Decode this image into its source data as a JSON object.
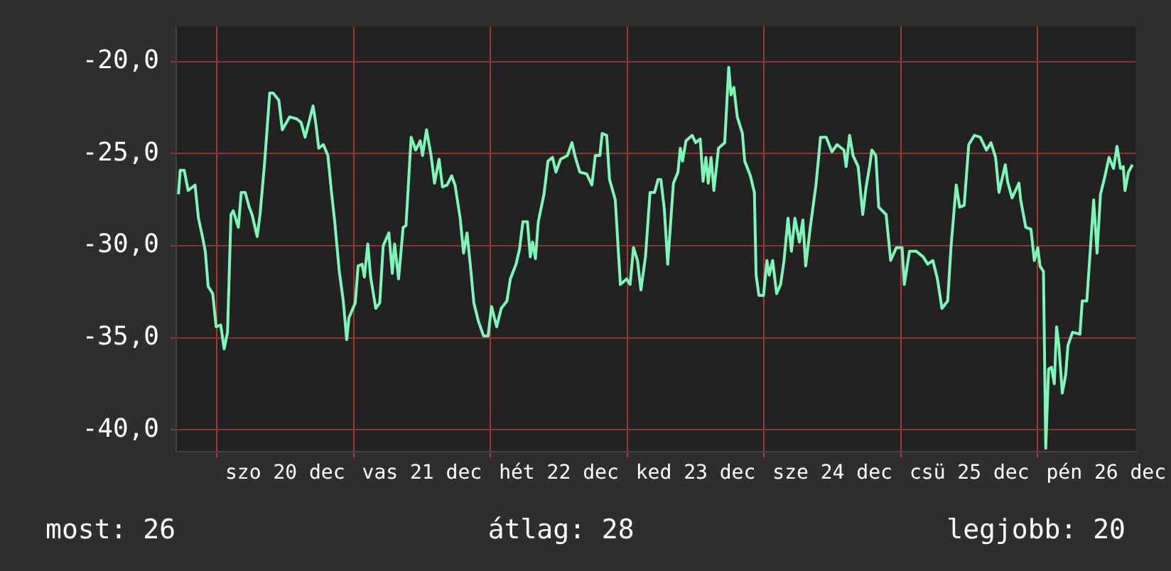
{
  "chart_data": {
    "type": "line",
    "xlim": [
      "--12-19T16:54",
      "--12-26T17:12"
    ],
    "ylim": [
      -41.2,
      -18.1
    ],
    "xticks": [
      {
        "value": "--12-20T00:00",
        "label": null
      },
      {
        "value": "--12-20T12:00",
        "label": "szo 20 dec"
      },
      {
        "value": "--12-21T00:00",
        "label": null
      },
      {
        "value": "--12-21T12:00",
        "label": "vas 21 dec"
      },
      {
        "value": "--12-22T00:00",
        "label": null
      },
      {
        "value": "--12-22T12:00",
        "label": "hét 22 dec"
      },
      {
        "value": "--12-23T00:00",
        "label": null
      },
      {
        "value": "--12-23T12:00",
        "label": "ked 23 dec"
      },
      {
        "value": "--12-24T00:00",
        "label": null
      },
      {
        "value": "--12-24T12:00",
        "label": "sze 24 dec"
      },
      {
        "value": "--12-25T00:00",
        "label": null
      },
      {
        "value": "--12-25T12:00",
        "label": "csü 25 dec"
      },
      {
        "value": "--12-26T00:00",
        "label": null
      },
      {
        "value": "--12-26T12:00",
        "label": "pén 26 dec"
      }
    ],
    "yticks": [
      {
        "value": -20,
        "label": "-20,0"
      },
      {
        "value": -25,
        "label": "-25,0"
      },
      {
        "value": -30,
        "label": "-30,0"
      },
      {
        "value": -35,
        "label": "-35,0"
      },
      {
        "value": -40,
        "label": "-40,0"
      }
    ],
    "grid": true,
    "legend": false,
    "marker": "none",
    "line_style": "solid",
    "annotations": [
      "most: 26",
      "átlag: 28",
      "legjobb: 20"
    ],
    "series": [
      {
        "color": "#7ff5b8",
        "x": [
          "--12-19T17:18",
          "--12-19T17:36",
          "--12-19T18:18",
          "--12-19T19:00",
          "--12-19T20:12",
          "--12-19T20:48",
          "--12-19T21:30",
          "--12-19T22:00",
          "--12-19T22:30",
          "--12-19T23:18",
          "--12-19T23:54",
          "--12-20T00:42",
          "--12-20T01:18",
          "--12-20T01:54",
          "--12-20T02:30",
          "--12-20T02:54",
          "--12-20T03:48",
          "--12-20T04:18",
          "--12-20T05:00",
          "--12-20T05:42",
          "--12-20T06:12",
          "--12-20T07:06",
          "--12-20T07:36",
          "--12-20T08:24",
          "--12-20T09:18",
          "--12-20T09:54",
          "--12-20T10:54",
          "--12-20T11:30",
          "--12-20T12:48",
          "--12-20T14:00",
          "--12-20T14:48",
          "--12-20T15:30",
          "--12-20T16:00",
          "--12-20T16:54",
          "--12-20T17:24",
          "--12-20T17:54",
          "--12-20T18:42",
          "--12-20T19:30",
          "--12-20T20:06",
          "--12-20T20:42",
          "--12-20T21:30",
          "--12-20T22:12",
          "--12-20T22:48",
          "--12-20T23:12",
          "--12-21T00:18",
          "--12-21T00:48",
          "--12-21T01:30",
          "--12-21T01:54",
          "--12-21T02:30",
          "--12-21T03:00",
          "--12-21T03:54",
          "--12-21T04:36",
          "--12-21T05:12",
          "--12-21T06:12",
          "--12-21T06:48",
          "--12-21T07:12",
          "--12-21T07:54",
          "--12-21T08:42",
          "--12-21T09:12",
          "--12-21T10:06",
          "--12-21T10:54",
          "--12-21T11:42",
          "--12-21T12:06",
          "--12-21T12:48",
          "--12-21T13:36",
          "--12-21T14:12",
          "--12-21T15:00",
          "--12-21T15:36",
          "--12-21T16:24",
          "--12-21T17:12",
          "--12-21T17:48",
          "--12-21T18:42",
          "--12-21T19:18",
          "--12-21T19:54",
          "--12-21T20:30",
          "--12-21T21:06",
          "--12-21T21:54",
          "--12-21T22:48",
          "--12-21T23:36",
          "--12-22T00:12",
          "--12-22T01:06",
          "--12-22T01:54",
          "--12-22T02:54",
          "--12-22T03:30",
          "--12-22T04:30",
          "--12-22T05:06",
          "--12-22T05:42",
          "--12-22T06:30",
          "--12-22T07:00",
          "--12-22T07:24",
          "--12-22T07:54",
          "--12-22T08:24",
          "--12-22T09:24",
          "--12-22T10:06",
          "--12-22T10:54",
          "--12-22T11:30",
          "--12-22T12:18",
          "--12-22T13:30",
          "--12-22T14:18",
          "--12-22T14:54",
          "--12-22T15:42",
          "--12-22T16:54",
          "--12-22T17:48",
          "--12-22T18:24",
          "--12-22T19:12",
          "--12-22T19:36",
          "--12-22T20:24",
          "--12-22T20:54",
          "--12-22T21:54",
          "--12-22T22:48",
          "--12-22T23:54",
          "--12-23T00:30",
          "--12-23T01:06",
          "--12-23T01:48",
          "--12-23T02:24",
          "--12-23T03:12",
          "--12-23T04:00",
          "--12-23T04:48",
          "--12-23T05:24",
          "--12-23T05:54",
          "--12-23T06:30",
          "--12-23T07:06",
          "--12-23T08:06",
          "--12-23T08:54",
          "--12-23T09:18",
          "--12-23T09:42",
          "--12-23T10:18",
          "--12-23T11:24",
          "--12-23T12:00",
          "--12-23T12:48",
          "--12-23T13:18",
          "--12-23T13:48",
          "--12-23T14:12",
          "--12-23T14:42",
          "--12-23T15:12",
          "--12-23T16:00",
          "--12-23T17:06",
          "--12-23T17:48",
          "--12-23T18:12",
          "--12-23T18:42",
          "--12-23T19:18",
          "--12-23T20:12",
          "--12-23T20:36",
          "--12-23T21:36",
          "--12-23T22:18",
          "--12-23T22:36",
          "--12-23T23:06",
          "--12-23T23:54",
          "--12-24T00:30",
          "--12-24T00:54",
          "--12-24T01:30",
          "--12-24T02:12",
          "--12-24T02:54",
          "--12-24T03:30",
          "--12-24T04:12",
          "--12-24T04:48",
          "--12-24T05:24",
          "--12-24T06:12",
          "--12-24T06:48",
          "--12-24T07:18",
          "--12-24T08:06",
          "--12-24T09:06",
          "--12-24T09:54",
          "--12-24T10:54",
          "--12-24T11:54",
          "--12-24T12:48",
          "--12-24T14:00",
          "--12-24T14:24",
          "--12-24T15:00",
          "--12-24T15:36",
          "--12-24T16:30",
          "--12-24T17:18",
          "--12-24T17:54",
          "--12-24T18:30",
          "--12-24T18:54",
          "--12-24T19:36",
          "--12-24T20:06",
          "--12-24T21:24",
          "--12-24T22:12",
          "--12-24T23:12",
          "--12-25T00:12",
          "--12-25T00:36",
          "--12-25T01:30",
          "--12-25T02:42",
          "--12-25T03:54",
          "--12-25T04:42",
          "--12-25T05:36",
          "--12-25T06:24",
          "--12-25T07:12",
          "--12-25T08:12",
          "--12-25T08:48",
          "--12-25T09:42",
          "--12-25T10:18",
          "--12-25T11:06",
          "--12-25T11:54",
          "--12-25T12:54",
          "--12-25T13:54",
          "--12-25T15:00",
          "--12-25T15:48",
          "--12-25T16:36",
          "--12-25T17:12",
          "--12-25T18:18",
          "--12-25T18:42",
          "--12-25T19:30",
          "--12-25T20:42",
          "--12-25T21:00",
          "--12-25T21:54",
          "--12-25T22:48",
          "--12-25T23:24",
          "--12-26T00:00",
          "--12-26T00:24",
          "--12-26T01:00",
          "--12-26T01:24",
          "--12-26T01:54",
          "--12-26T02:24",
          "--12-26T02:54",
          "--12-26T03:18",
          "--12-26T03:42",
          "--12-26T04:18",
          "--12-26T04:54",
          "--12-26T05:18",
          "--12-26T06:06",
          "--12-26T07:24",
          "--12-26T07:48",
          "--12-26T08:36",
          "--12-26T09:12",
          "--12-26T09:48",
          "--12-26T10:24",
          "--12-26T11:00",
          "--12-26T11:48",
          "--12-26T12:30",
          "--12-26T13:18",
          "--12-26T13:54",
          "--12-26T14:30",
          "--12-26T15:00",
          "--12-26T15:18",
          "--12-26T15:54",
          "--12-26T16:36"
        ],
        "values": [
          -27.2,
          -25.9,
          -25.9,
          -27.0,
          -26.7,
          -28.5,
          -29.5,
          -30.3,
          -32.2,
          -32.6,
          -34.4,
          -34.3,
          -35.6,
          -34.7,
          -28.3,
          -28.1,
          -29.0,
          -27.1,
          -27.1,
          -27.9,
          -28.3,
          -29.5,
          -28.3,
          -25.5,
          -21.7,
          -21.7,
          -22.1,
          -23.7,
          -23.0,
          -23.1,
          -23.3,
          -24.1,
          -23.5,
          -22.4,
          -23.4,
          -24.7,
          -24.5,
          -25.1,
          -27.0,
          -28.7,
          -31.4,
          -33.0,
          -35.1,
          -33.9,
          -33.1,
          -31.1,
          -31.0,
          -31.7,
          -29.9,
          -31.7,
          -33.4,
          -33.1,
          -30.0,
          -29.3,
          -31.5,
          -29.9,
          -31.8,
          -29.0,
          -28.9,
          -24.1,
          -24.8,
          -24.3,
          -25.1,
          -23.7,
          -25.1,
          -26.6,
          -25.3,
          -26.8,
          -26.7,
          -26.2,
          -26.7,
          -28.5,
          -30.4,
          -29.3,
          -31.1,
          -33.1,
          -34.1,
          -34.9,
          -34.9,
          -33.3,
          -34.4,
          -33.4,
          -33.0,
          -31.8,
          -31.0,
          -30.2,
          -28.7,
          -28.7,
          -30.6,
          -29.8,
          -30.7,
          -28.7,
          -27.2,
          -25.4,
          -25.2,
          -26.0,
          -25.3,
          -25.1,
          -24.4,
          -25.2,
          -26.0,
          -26.1,
          -26.7,
          -25.1,
          -25.1,
          -23.9,
          -24.0,
          -26.4,
          -27.5,
          -32.1,
          -31.8,
          -32.1,
          -30.1,
          -30.8,
          -32.4,
          -30.6,
          -27.1,
          -27.1,
          -26.4,
          -26.4,
          -28.0,
          -31.0,
          -26.6,
          -26.0,
          -24.7,
          -25.4,
          -24.3,
          -24.0,
          -24.4,
          -24.2,
          -26.5,
          -25.2,
          -26.6,
          -25.2,
          -27.0,
          -24.7,
          -24.4,
          -20.3,
          -21.8,
          -21.4,
          -23.0,
          -23.9,
          -25.4,
          -26.2,
          -27.1,
          -31.6,
          -32.7,
          -32.7,
          -30.8,
          -31.6,
          -30.8,
          -32.6,
          -32.1,
          -30.8,
          -28.5,
          -30.3,
          -28.5,
          -29.8,
          -28.6,
          -31.1,
          -29.0,
          -26.7,
          -24.1,
          -24.1,
          -24.9,
          -24.5,
          -24.8,
          -25.7,
          -24.0,
          -25.1,
          -25.7,
          -28.3,
          -26.8,
          -25.7,
          -24.8,
          -25.1,
          -27.9,
          -28.3,
          -30.8,
          -30.1,
          -30.1,
          -32.1,
          -30.3,
          -30.3,
          -30.6,
          -31.0,
          -30.8,
          -31.8,
          -33.4,
          -33.0,
          -30.0,
          -26.7,
          -27.9,
          -27.8,
          -24.5,
          -24.0,
          -24.1,
          -24.8,
          -24.4,
          -25.2,
          -27.1,
          -25.6,
          -26.5,
          -27.4,
          -26.6,
          -27.5,
          -29.0,
          -29.1,
          -30.8,
          -30.1,
          -31.1,
          -31.4,
          -41.0,
          -36.7,
          -36.6,
          -37.5,
          -34.4,
          -35.4,
          -38.0,
          -37.0,
          -35.4,
          -34.7,
          -34.8,
          -33.0,
          -33.0,
          -30.3,
          -27.5,
          -30.4,
          -27.2,
          -26.2,
          -25.2,
          -25.8,
          -24.6,
          -25.8,
          -25.7,
          -27.0,
          -26.0,
          -25.6
        ]
      }
    ]
  }
}
